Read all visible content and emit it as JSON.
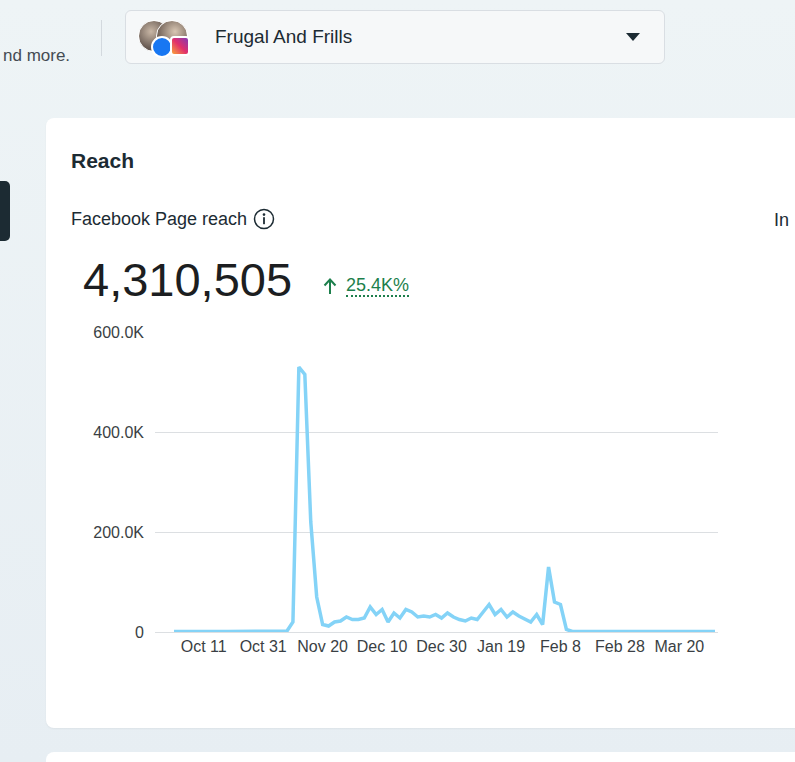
{
  "page": {
    "header_fragment": "nd more.",
    "account": "Frugal And Frills",
    "card_title": "Reach",
    "side_label_fragment": "In",
    "metric_total": "4,310,505",
    "metric_change": "25.4K%"
  },
  "chart_data": {
    "type": "line",
    "title": "Facebook Page reach",
    "categories": [
      null,
      null,
      null,
      null,
      null,
      "Oct 11",
      null,
      null,
      null,
      null,
      null,
      null,
      null,
      null,
      null,
      "Oct 31",
      null,
      null,
      null,
      null,
      null,
      null,
      null,
      null,
      null,
      "Nov 20",
      null,
      null,
      null,
      null,
      null,
      null,
      null,
      null,
      null,
      "Dec 10",
      null,
      null,
      null,
      null,
      null,
      null,
      null,
      null,
      null,
      "Dec 30",
      null,
      null,
      null,
      null,
      null,
      null,
      null,
      null,
      null,
      "Jan 19",
      null,
      null,
      null,
      null,
      null,
      null,
      null,
      null,
      null,
      "Feb 8",
      null,
      null,
      null,
      null,
      null,
      null,
      null,
      null,
      null,
      "Feb 28",
      null,
      null,
      null,
      null,
      null,
      null,
      null,
      null,
      null,
      "Mar 20",
      null,
      null,
      null,
      null,
      null,
      null
    ],
    "values": [
      1000,
      1200,
      900,
      1100,
      1000,
      800,
      1000,
      1200,
      1000,
      900,
      1000,
      1100,
      900,
      1000,
      1200,
      1000,
      900,
      1100,
      1000,
      2000,
      20000,
      530000,
      515000,
      220000,
      70000,
      15000,
      12000,
      20000,
      22000,
      30000,
      25000,
      25000,
      28000,
      50000,
      35000,
      45000,
      20000,
      38000,
      28000,
      45000,
      40000,
      30000,
      32000,
      30000,
      35000,
      28000,
      38000,
      30000,
      25000,
      22000,
      28000,
      25000,
      40000,
      55000,
      35000,
      45000,
      30000,
      40000,
      32000,
      25000,
      20000,
      35000,
      15000,
      130000,
      60000,
      55000,
      5000,
      1000,
      1000,
      1000,
      1000,
      1000,
      1000,
      1000,
      1000,
      1000,
      1000,
      1000,
      1000,
      1000,
      1000,
      1000,
      1000,
      1000,
      1000,
      1500,
      1000,
      1000,
      1000,
      1000,
      1000,
      1000
    ],
    "color": "#84d3f7",
    "ylim": [
      0,
      600000
    ],
    "yticks": [
      0,
      {
        "value": 200000,
        "label": "200.0K"
      },
      {
        "value": 400000,
        "label": "400.0K"
      },
      {
        "value": 600000,
        "label": "600.0K"
      }
    ],
    "grid": true
  }
}
